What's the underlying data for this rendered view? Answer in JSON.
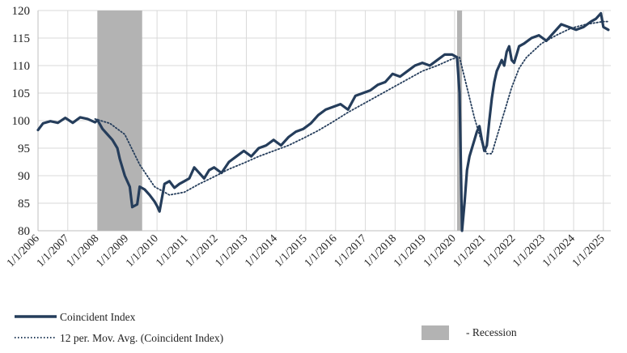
{
  "chart_data": {
    "type": "line",
    "title": "",
    "xlabel": "",
    "ylabel": "",
    "ylim": [
      80,
      120
    ],
    "y_ticks": [
      80,
      85,
      90,
      95,
      100,
      105,
      110,
      115,
      120
    ],
    "x_tick_labels": [
      "1/1/2006",
      "1/1/2007",
      "1/1/2008",
      "1/1/2009",
      "1/1/2010",
      "1/1/2011",
      "1/1/2012",
      "1/1/2013",
      "1/1/2014",
      "1/1/2015",
      "1/1/2016",
      "1/1/2017",
      "1/1/2018",
      "1/1/2019",
      "1/1/2020",
      "1/1/2021",
      "1/1/2022",
      "1/1/2023",
      "1/1/2024",
      "1/1/2025"
    ],
    "grid": true,
    "legend_position": "bottom",
    "recession_periods": [
      [
        "2008-01-01",
        "2009-07-01"
      ],
      [
        "2020-02-01",
        "2020-04-01"
      ]
    ],
    "series": [
      {
        "name": "Coincident Index",
        "style": "solid",
        "color": "#253d5b",
        "points": [
          [
            "2006-01-01",
            98.3
          ],
          [
            "2006-03-01",
            99.5
          ],
          [
            "2006-06-01",
            99.9
          ],
          [
            "2006-09-01",
            99.6
          ],
          [
            "2006-12-01",
            100.5
          ],
          [
            "2007-03-01",
            99.6
          ],
          [
            "2007-06-01",
            100.6
          ],
          [
            "2007-09-01",
            100.3
          ],
          [
            "2007-12-01",
            99.7
          ],
          [
            "2008-01-01",
            100.1
          ],
          [
            "2008-03-01",
            98.5
          ],
          [
            "2008-05-01",
            97.5
          ],
          [
            "2008-07-01",
            96.5
          ],
          [
            "2008-09-01",
            95.0
          ],
          [
            "2008-10-01",
            93.0
          ],
          [
            "2008-12-01",
            90.0
          ],
          [
            "2009-02-01",
            88.0
          ],
          [
            "2009-03-01",
            84.3
          ],
          [
            "2009-05-01",
            84.8
          ],
          [
            "2009-06-01",
            88.0
          ],
          [
            "2009-08-01",
            87.5
          ],
          [
            "2009-10-01",
            86.5
          ],
          [
            "2009-12-01",
            85.3
          ],
          [
            "2010-01-01",
            84.5
          ],
          [
            "2010-02-01",
            83.5
          ],
          [
            "2010-04-01",
            88.5
          ],
          [
            "2010-06-01",
            89.0
          ],
          [
            "2010-08-01",
            87.8
          ],
          [
            "2010-10-01",
            88.5
          ],
          [
            "2010-12-01",
            89.0
          ],
          [
            "2011-02-01",
            89.5
          ],
          [
            "2011-04-01",
            91.5
          ],
          [
            "2011-06-01",
            90.5
          ],
          [
            "2011-08-01",
            89.5
          ],
          [
            "2011-10-01",
            91.0
          ],
          [
            "2011-12-01",
            91.5
          ],
          [
            "2012-03-01",
            90.5
          ],
          [
            "2012-06-01",
            92.5
          ],
          [
            "2012-09-01",
            93.5
          ],
          [
            "2012-12-01",
            94.5
          ],
          [
            "2013-03-01",
            93.5
          ],
          [
            "2013-06-01",
            95.0
          ],
          [
            "2013-09-01",
            95.5
          ],
          [
            "2013-12-01",
            96.5
          ],
          [
            "2014-03-01",
            95.5
          ],
          [
            "2014-06-01",
            97.0
          ],
          [
            "2014-09-01",
            98.0
          ],
          [
            "2014-12-01",
            98.5
          ],
          [
            "2015-03-01",
            99.5
          ],
          [
            "2015-06-01",
            101.0
          ],
          [
            "2015-09-01",
            102.0
          ],
          [
            "2015-12-01",
            102.5
          ],
          [
            "2016-03-01",
            103.0
          ],
          [
            "2016-06-01",
            102.0
          ],
          [
            "2016-09-01",
            104.5
          ],
          [
            "2016-12-01",
            105.0
          ],
          [
            "2017-03-01",
            105.5
          ],
          [
            "2017-06-01",
            106.5
          ],
          [
            "2017-09-01",
            107.0
          ],
          [
            "2017-12-01",
            108.5
          ],
          [
            "2018-03-01",
            108.0
          ],
          [
            "2018-06-01",
            109.0
          ],
          [
            "2018-09-01",
            110.0
          ],
          [
            "2018-12-01",
            110.5
          ],
          [
            "2019-03-01",
            110.0
          ],
          [
            "2019-06-01",
            111.0
          ],
          [
            "2019-09-01",
            112.0
          ],
          [
            "2019-12-01",
            112.0
          ],
          [
            "2020-02-01",
            111.5
          ],
          [
            "2020-03-01",
            105.0
          ],
          [
            "2020-04-01",
            80.0
          ],
          [
            "2020-05-01",
            85.0
          ],
          [
            "2020-06-01",
            91.0
          ],
          [
            "2020-07-01",
            93.5
          ],
          [
            "2020-08-01",
            95.0
          ],
          [
            "2020-09-01",
            96.5
          ],
          [
            "2020-10-01",
            98.0
          ],
          [
            "2020-11-01",
            99.0
          ],
          [
            "2020-12-01",
            96.5
          ],
          [
            "2021-01-01",
            94.5
          ],
          [
            "2021-02-01",
            95.5
          ],
          [
            "2021-03-01",
            100.0
          ],
          [
            "2021-04-01",
            104.0
          ],
          [
            "2021-05-01",
            107.0
          ],
          [
            "2021-06-01",
            109.0
          ],
          [
            "2021-07-01",
            110.0
          ],
          [
            "2021-08-01",
            111.0
          ],
          [
            "2021-09-01",
            110.0
          ],
          [
            "2021-10-01",
            112.5
          ],
          [
            "2021-11-01",
            113.5
          ],
          [
            "2021-12-01",
            111.0
          ],
          [
            "2022-01-01",
            110.5
          ],
          [
            "2022-02-01",
            112.0
          ],
          [
            "2022-03-01",
            113.5
          ],
          [
            "2022-05-01",
            114.0
          ],
          [
            "2022-08-01",
            115.0
          ],
          [
            "2022-11-01",
            115.5
          ],
          [
            "2023-02-01",
            114.5
          ],
          [
            "2023-05-01",
            116.0
          ],
          [
            "2023-08-01",
            117.5
          ],
          [
            "2023-11-01",
            117.0
          ],
          [
            "2024-02-01",
            116.5
          ],
          [
            "2024-05-01",
            117.0
          ],
          [
            "2024-08-01",
            118.0
          ],
          [
            "2024-10-01",
            118.5
          ],
          [
            "2024-12-01",
            119.5
          ],
          [
            "2025-01-01",
            117.0
          ],
          [
            "2025-03-01",
            116.5
          ]
        ]
      },
      {
        "name": "12 per. Mov. Avg. (Coincident Index)",
        "style": "dotted",
        "color": "#253d5b",
        "points": [
          [
            "2007-12-01",
            100.3
          ],
          [
            "2008-06-01",
            99.5
          ],
          [
            "2008-12-01",
            97.5
          ],
          [
            "2009-06-01",
            92.0
          ],
          [
            "2009-12-01",
            88.0
          ],
          [
            "2010-06-01",
            86.5
          ],
          [
            "2010-12-01",
            87.0
          ],
          [
            "2011-06-01",
            88.5
          ],
          [
            "2011-12-01",
            89.8
          ],
          [
            "2012-06-01",
            91.2
          ],
          [
            "2012-12-01",
            92.3
          ],
          [
            "2013-06-01",
            93.5
          ],
          [
            "2013-12-01",
            94.5
          ],
          [
            "2014-06-01",
            95.5
          ],
          [
            "2014-12-01",
            96.8
          ],
          [
            "2015-06-01",
            98.2
          ],
          [
            "2015-12-01",
            99.8
          ],
          [
            "2016-06-01",
            101.5
          ],
          [
            "2016-12-01",
            103.0
          ],
          [
            "2017-06-01",
            104.5
          ],
          [
            "2017-12-01",
            106.0
          ],
          [
            "2018-06-01",
            107.5
          ],
          [
            "2018-12-01",
            109.0
          ],
          [
            "2019-06-01",
            110.0
          ],
          [
            "2019-12-01",
            111.2
          ],
          [
            "2020-03-01",
            111.5
          ],
          [
            "2020-06-01",
            106.0
          ],
          [
            "2020-09-01",
            100.5
          ],
          [
            "2020-12-01",
            96.0
          ],
          [
            "2021-02-01",
            94.0
          ],
          [
            "2021-04-01",
            94.0
          ],
          [
            "2021-06-01",
            97.0
          ],
          [
            "2021-09-01",
            101.5
          ],
          [
            "2021-12-01",
            106.0
          ],
          [
            "2022-03-01",
            109.5
          ],
          [
            "2022-06-01",
            111.5
          ],
          [
            "2022-12-01",
            114.0
          ],
          [
            "2023-06-01",
            115.5
          ],
          [
            "2023-12-01",
            116.8
          ],
          [
            "2024-06-01",
            117.5
          ],
          [
            "2025-01-01",
            118.0
          ],
          [
            "2025-03-01",
            118.0
          ]
        ]
      }
    ]
  },
  "legend": {
    "solid_label": "Coincident Index",
    "dotted_label": "12 per. Mov. Avg. (Coincident Index)",
    "recession_label": "- Recession"
  },
  "colors": {
    "line": "#253d5b",
    "recession": "#b3b3b3",
    "grid": "#d9d9d9"
  }
}
